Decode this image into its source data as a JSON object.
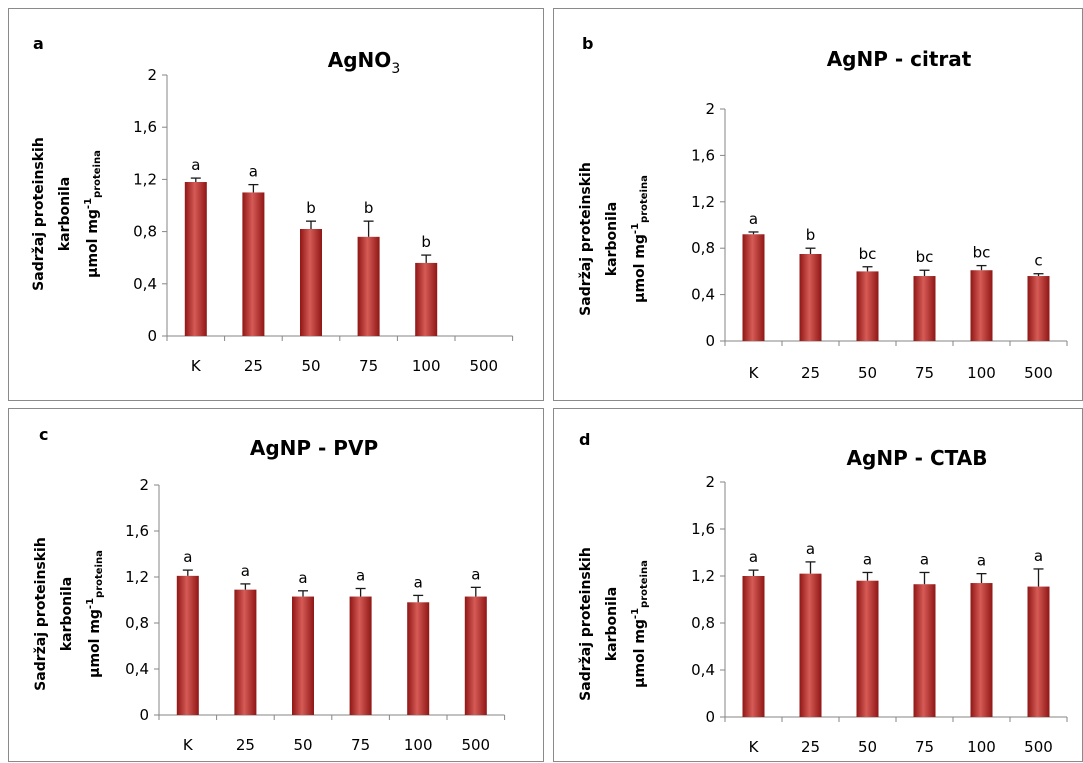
{
  "colors": {
    "bar_dark": "#8e1614",
    "bar_mid": "#c0413e",
    "bar_light": "#d65b57",
    "axis": "#868686"
  },
  "chart_data": [
    {
      "type": "bar",
      "panel_label": "a",
      "title": "AgNO",
      "title_sub": "3",
      "ylabel_lines": [
        "Sadržaj proteinskih",
        "karbonila"
      ],
      "ylabel_unit": {
        "main": "µmol mg",
        "sup": "-1",
        "sub": "proteina"
      },
      "categories": [
        "K",
        "25",
        "50",
        "75",
        "100",
        "500"
      ],
      "values": [
        1.18,
        1.1,
        0.82,
        0.76,
        0.56,
        null
      ],
      "errors": [
        0.03,
        0.06,
        0.06,
        0.12,
        0.06,
        null
      ],
      "significance": [
        "a",
        "a",
        "b",
        "b",
        "b",
        ""
      ],
      "ylim": [
        0,
        2
      ],
      "yticks": [
        0,
        0.4,
        0.8,
        1.2,
        1.6,
        2
      ],
      "ytick_labels": [
        "0",
        "0,4",
        "0,8",
        "1,2",
        "1,6",
        "2"
      ]
    },
    {
      "type": "bar",
      "panel_label": "b",
      "title": "AgNP - citrat",
      "title_sub": "",
      "ylabel_lines": [
        "Sadržaj proteinskih",
        "karbonila"
      ],
      "ylabel_unit": {
        "main": "µmol mg",
        "sup": "-1",
        "sub": "proteina"
      },
      "categories": [
        "K",
        "25",
        "50",
        "75",
        "100",
        "500"
      ],
      "values": [
        0.92,
        0.75,
        0.6,
        0.56,
        0.61,
        0.56
      ],
      "errors": [
        0.02,
        0.05,
        0.04,
        0.05,
        0.04,
        0.02
      ],
      "significance": [
        "a",
        "b",
        "bc",
        "bc",
        "bc",
        "c"
      ],
      "ylim": [
        0,
        2
      ],
      "yticks": [
        0,
        0.4,
        0.8,
        1.2,
        1.6,
        2
      ],
      "ytick_labels": [
        "0",
        "0,4",
        "0,8",
        "1,2",
        "1,6",
        "2"
      ]
    },
    {
      "type": "bar",
      "panel_label": "c",
      "title": "AgNP - PVP",
      "title_sub": "",
      "ylabel_lines": [
        "Sadržaj proteinskih",
        "karbonila"
      ],
      "ylabel_unit": {
        "main": "µmol mg",
        "sup": "-1",
        "sub": "proteina"
      },
      "categories": [
        "K",
        "25",
        "50",
        "75",
        "100",
        "500"
      ],
      "values": [
        1.21,
        1.09,
        1.03,
        1.03,
        0.98,
        1.03
      ],
      "errors": [
        0.05,
        0.05,
        0.05,
        0.07,
        0.06,
        0.08
      ],
      "significance": [
        "a",
        "a",
        "a",
        "a",
        "a",
        "a"
      ],
      "ylim": [
        0,
        2
      ],
      "yticks": [
        0,
        0.4,
        0.8,
        1.2,
        1.6,
        2
      ],
      "ytick_labels": [
        "0",
        "0,4",
        "0,8",
        "1,2",
        "1,6",
        "2"
      ]
    },
    {
      "type": "bar",
      "panel_label": "d",
      "title": "AgNP - CTAB",
      "title_sub": "",
      "ylabel_lines": [
        "Sadržaj proteinskih",
        "karbonila"
      ],
      "ylabel_unit": {
        "main": "µmol mg",
        "sup": "-1",
        "sub": "proteina"
      },
      "categories": [
        "K",
        "25",
        "50",
        "75",
        "100",
        "500"
      ],
      "values": [
        1.2,
        1.22,
        1.16,
        1.13,
        1.14,
        1.11
      ],
      "errors": [
        0.05,
        0.1,
        0.07,
        0.1,
        0.08,
        0.15
      ],
      "significance": [
        "a",
        "a",
        "a",
        "a",
        "a",
        "a"
      ],
      "ylim": [
        0,
        2
      ],
      "yticks": [
        0,
        0.4,
        0.8,
        1.2,
        1.6,
        2
      ],
      "ytick_labels": [
        "0",
        "0,4",
        "0,8",
        "1,2",
        "1,6",
        "2"
      ]
    }
  ]
}
